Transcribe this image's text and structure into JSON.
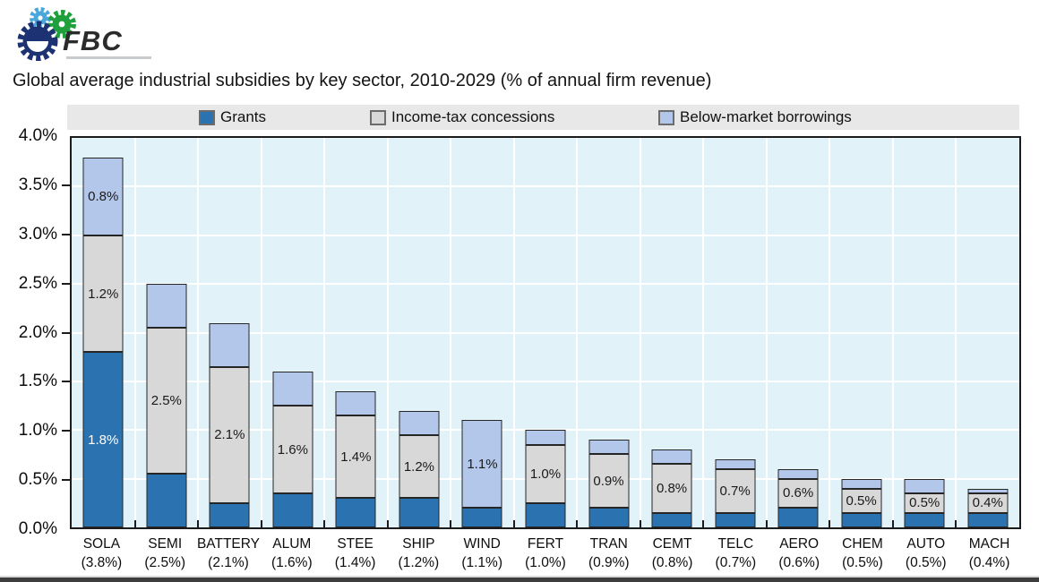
{
  "logo": {
    "text": "FBC",
    "gear_dark_color": "#1d3272",
    "gear_green_color": "#1fa03c",
    "gear_blue_color": "#4aa7dc"
  },
  "title": "Global average industrial subsidies by key sector, 2010-2029 (% of annual firm revenue)",
  "legend": {
    "items": [
      {
        "label": "Grants",
        "color": "#2b72b0"
      },
      {
        "label": "Income-tax concessions",
        "color": "#d8d8d8"
      },
      {
        "label": "Below-market borrowings",
        "color": "#b3c7ea"
      }
    ]
  },
  "chart_data": {
    "type": "bar",
    "subtype": "stacked-vertical",
    "title": "Global average industrial subsidies by key sector, 2010-2029 (% of annual firm revenue)",
    "ylabel": "% of annual firm revenue",
    "ylim": [
      0,
      4
    ],
    "ytick_step": 0.5,
    "grid": "white horizontal and vertical lines on light blue background",
    "legend_position": "top strip",
    "plot_bg": "#e1f3f8",
    "grid_color": "#ffffff",
    "series": [
      {
        "name": "Grants",
        "color": "#2b72b0"
      },
      {
        "name": "Income-tax concessions",
        "color": "#d8d8d8"
      },
      {
        "name": "Below-market borrowings",
        "color": "#b3c7ea"
      }
    ],
    "y_ticks": [
      {
        "label": "4.0%",
        "value": 4.0
      },
      {
        "label": "3.5%",
        "value": 3.5
      },
      {
        "label": "3.0%",
        "value": 3.0
      },
      {
        "label": "2.5%",
        "value": 2.5
      },
      {
        "label": "2.0%",
        "value": 2.0
      },
      {
        "label": "1.5%",
        "value": 1.5
      },
      {
        "label": "1.0%",
        "value": 1.0
      },
      {
        "label": "0.5%",
        "value": 0.5
      },
      {
        "label": "0.0%",
        "value": 0.0
      }
    ],
    "categories": [
      {
        "name": "SOLA",
        "total_label": "(3.8%)",
        "segments": [
          {
            "value": 1.8,
            "label": "1.8%",
            "label_color": "#ffffff"
          },
          {
            "value": 1.2,
            "label": "1.2%",
            "label_color": "#1a1a1a"
          },
          {
            "value": 0.8,
            "label": "0.8%",
            "label_color": "#1a1a1a"
          }
        ]
      },
      {
        "name": "SEMI",
        "total_label": "(2.5%)",
        "segments": [
          {
            "value": 0.55,
            "label": null
          },
          {
            "value": 1.5,
            "label": "2.5%",
            "label_color": "#1a1a1a"
          },
          {
            "value": 0.45,
            "label": null
          }
        ]
      },
      {
        "name": "BATTERY",
        "total_label": "(2.1%)",
        "segments": [
          {
            "value": 0.25,
            "label": null
          },
          {
            "value": 1.4,
            "label": "2.1%",
            "label_color": "#1a1a1a"
          },
          {
            "value": 0.45,
            "label": null
          }
        ]
      },
      {
        "name": "ALUM",
        "total_label": "(1.6%)",
        "segments": [
          {
            "value": 0.35,
            "label": null
          },
          {
            "value": 0.9,
            "label": "1.6%",
            "label_color": "#1a1a1a"
          },
          {
            "value": 0.35,
            "label": null
          }
        ]
      },
      {
        "name": "STEE",
        "total_label": "(1.4%)",
        "segments": [
          {
            "value": 0.3,
            "label": null
          },
          {
            "value": 0.85,
            "label": "1.4%",
            "label_color": "#1a1a1a"
          },
          {
            "value": 0.25,
            "label": null
          }
        ]
      },
      {
        "name": "SHIP",
        "total_label": "(1.2%)",
        "segments": [
          {
            "value": 0.3,
            "label": null
          },
          {
            "value": 0.65,
            "label": "1.2%",
            "label_color": "#1a1a1a"
          },
          {
            "value": 0.25,
            "label": null
          }
        ]
      },
      {
        "name": "WIND",
        "total_label": "(1.1%)",
        "segments": [
          {
            "value": 0.2,
            "label": null
          },
          {
            "value": 0.0,
            "label": null
          },
          {
            "value": 0.9,
            "label": "1.1%",
            "label_color": "#1a1a1a"
          }
        ]
      },
      {
        "name": "FERT",
        "total_label": "(1.0%)",
        "segments": [
          {
            "value": 0.25,
            "label": null
          },
          {
            "value": 0.6,
            "label": "1.0%",
            "label_color": "#1a1a1a"
          },
          {
            "value": 0.15,
            "label": null
          }
        ]
      },
      {
        "name": "TRAN",
        "total_label": "(0.9%)",
        "segments": [
          {
            "value": 0.2,
            "label": null
          },
          {
            "value": 0.55,
            "label": "0.9%",
            "label_color": "#1a1a1a"
          },
          {
            "value": 0.15,
            "label": null
          }
        ]
      },
      {
        "name": "CEMT",
        "total_label": "(0.8%)",
        "segments": [
          {
            "value": 0.15,
            "label": null
          },
          {
            "value": 0.5,
            "label": "0.8%",
            "label_color": "#1a1a1a"
          },
          {
            "value": 0.15,
            "label": null
          }
        ]
      },
      {
        "name": "TELC",
        "total_label": "(0.7%)",
        "segments": [
          {
            "value": 0.15,
            "label": null
          },
          {
            "value": 0.45,
            "label": "0.7%",
            "label_color": "#1a1a1a"
          },
          {
            "value": 0.1,
            "label": null
          }
        ]
      },
      {
        "name": "AERO",
        "total_label": "(0.6%)",
        "segments": [
          {
            "value": 0.2,
            "label": null
          },
          {
            "value": 0.3,
            "label": "0.6%",
            "label_color": "#1a1a1a"
          },
          {
            "value": 0.1,
            "label": null
          }
        ]
      },
      {
        "name": "CHEM",
        "total_label": "(0.5%)",
        "segments": [
          {
            "value": 0.15,
            "label": null
          },
          {
            "value": 0.25,
            "label": "0.5%",
            "label_color": "#1a1a1a"
          },
          {
            "value": 0.1,
            "label": null
          }
        ]
      },
      {
        "name": "AUTO",
        "total_label": "(0.5%)",
        "segments": [
          {
            "value": 0.15,
            "label": null
          },
          {
            "value": 0.2,
            "label": "0.5%",
            "label_color": "#1a1a1a"
          },
          {
            "value": 0.15,
            "label": null
          }
        ]
      },
      {
        "name": "MACH",
        "total_label": "(0.4%)",
        "segments": [
          {
            "value": 0.15,
            "label": null
          },
          {
            "value": 0.2,
            "label": "0.4%",
            "label_color": "#1a1a1a"
          },
          {
            "value": 0.05,
            "label": null
          }
        ]
      }
    ]
  }
}
